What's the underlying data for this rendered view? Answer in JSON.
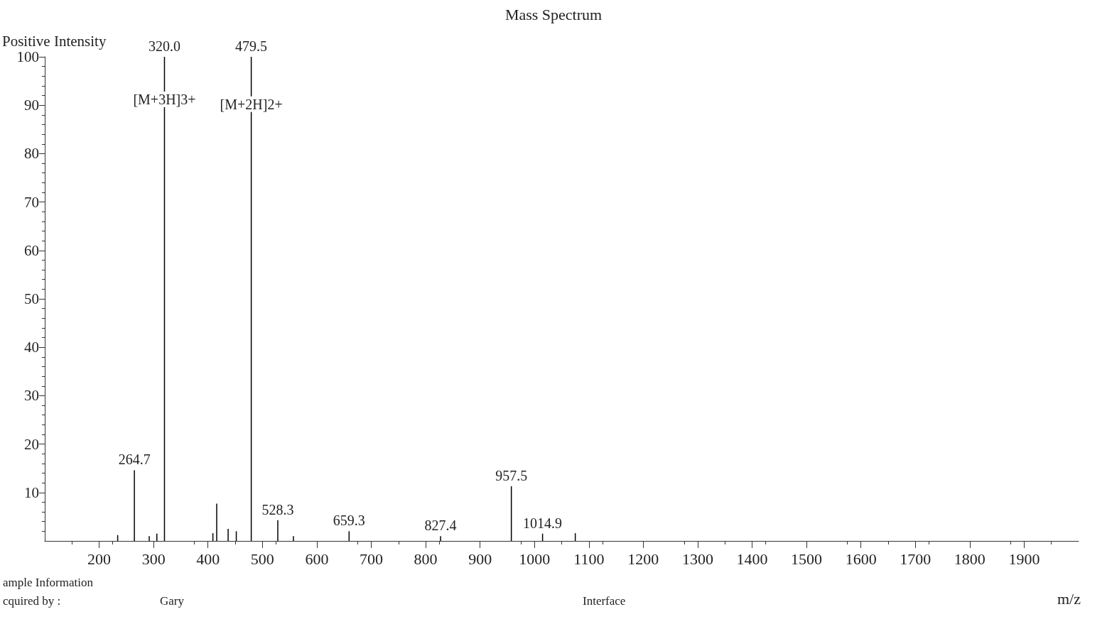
{
  "chart_data": {
    "type": "bar",
    "title": "Mass Spectrum",
    "xlabel": "m/z",
    "ylabel": "Positive Intensity",
    "x": [
      234,
      264.7,
      292,
      306,
      320.0,
      409,
      416,
      437,
      452,
      479.5,
      528.3,
      557,
      659.3,
      827.4,
      957.5,
      1014.9,
      1075
    ],
    "values": [
      1.2,
      14.6,
      1,
      1.5,
      100,
      1.6,
      7.7,
      2.5,
      2,
      100,
      4.3,
      1,
      2,
      1,
      11.3,
      1.5,
      1.6
    ],
    "color": "#000000",
    "xlim": [
      100,
      2000
    ],
    "xticks": [
      200,
      300,
      400,
      500,
      600,
      700,
      800,
      900,
      1000,
      1100,
      1200,
      1300,
      1400,
      1500,
      1600,
      1700,
      1800,
      1900
    ],
    "ylim": [
      0,
      100
    ],
    "yticks": [
      10,
      20,
      30,
      40,
      50,
      60,
      70,
      80,
      90,
      100
    ],
    "grid": false,
    "annotations": [
      {
        "text": "264.7",
        "x": 264.7,
        "y": 14.6
      },
      {
        "text": "320.0",
        "x": 320.0,
        "y": 100
      },
      {
        "text": "479.5",
        "x": 479.5,
        "y": 100
      },
      {
        "text": "528.3",
        "x": 528.3,
        "y": 4.3
      },
      {
        "text": "659.3",
        "x": 659.3,
        "y": 2
      },
      {
        "text": "827.4",
        "x": 827.4,
        "y": 1
      },
      {
        "text": "957.5",
        "x": 957.5,
        "y": 11.3
      },
      {
        "text": "1014.9",
        "x": 1014.9,
        "y": 1.5
      },
      {
        "text": "[M+3H]3+",
        "x": 320.0,
        "y": 89
      },
      {
        "text": "[M+2H]2+",
        "x": 479.5,
        "y": 88
      },
      "ample Information",
      "cquired by :",
      "Gary",
      "Interface"
    ]
  }
}
